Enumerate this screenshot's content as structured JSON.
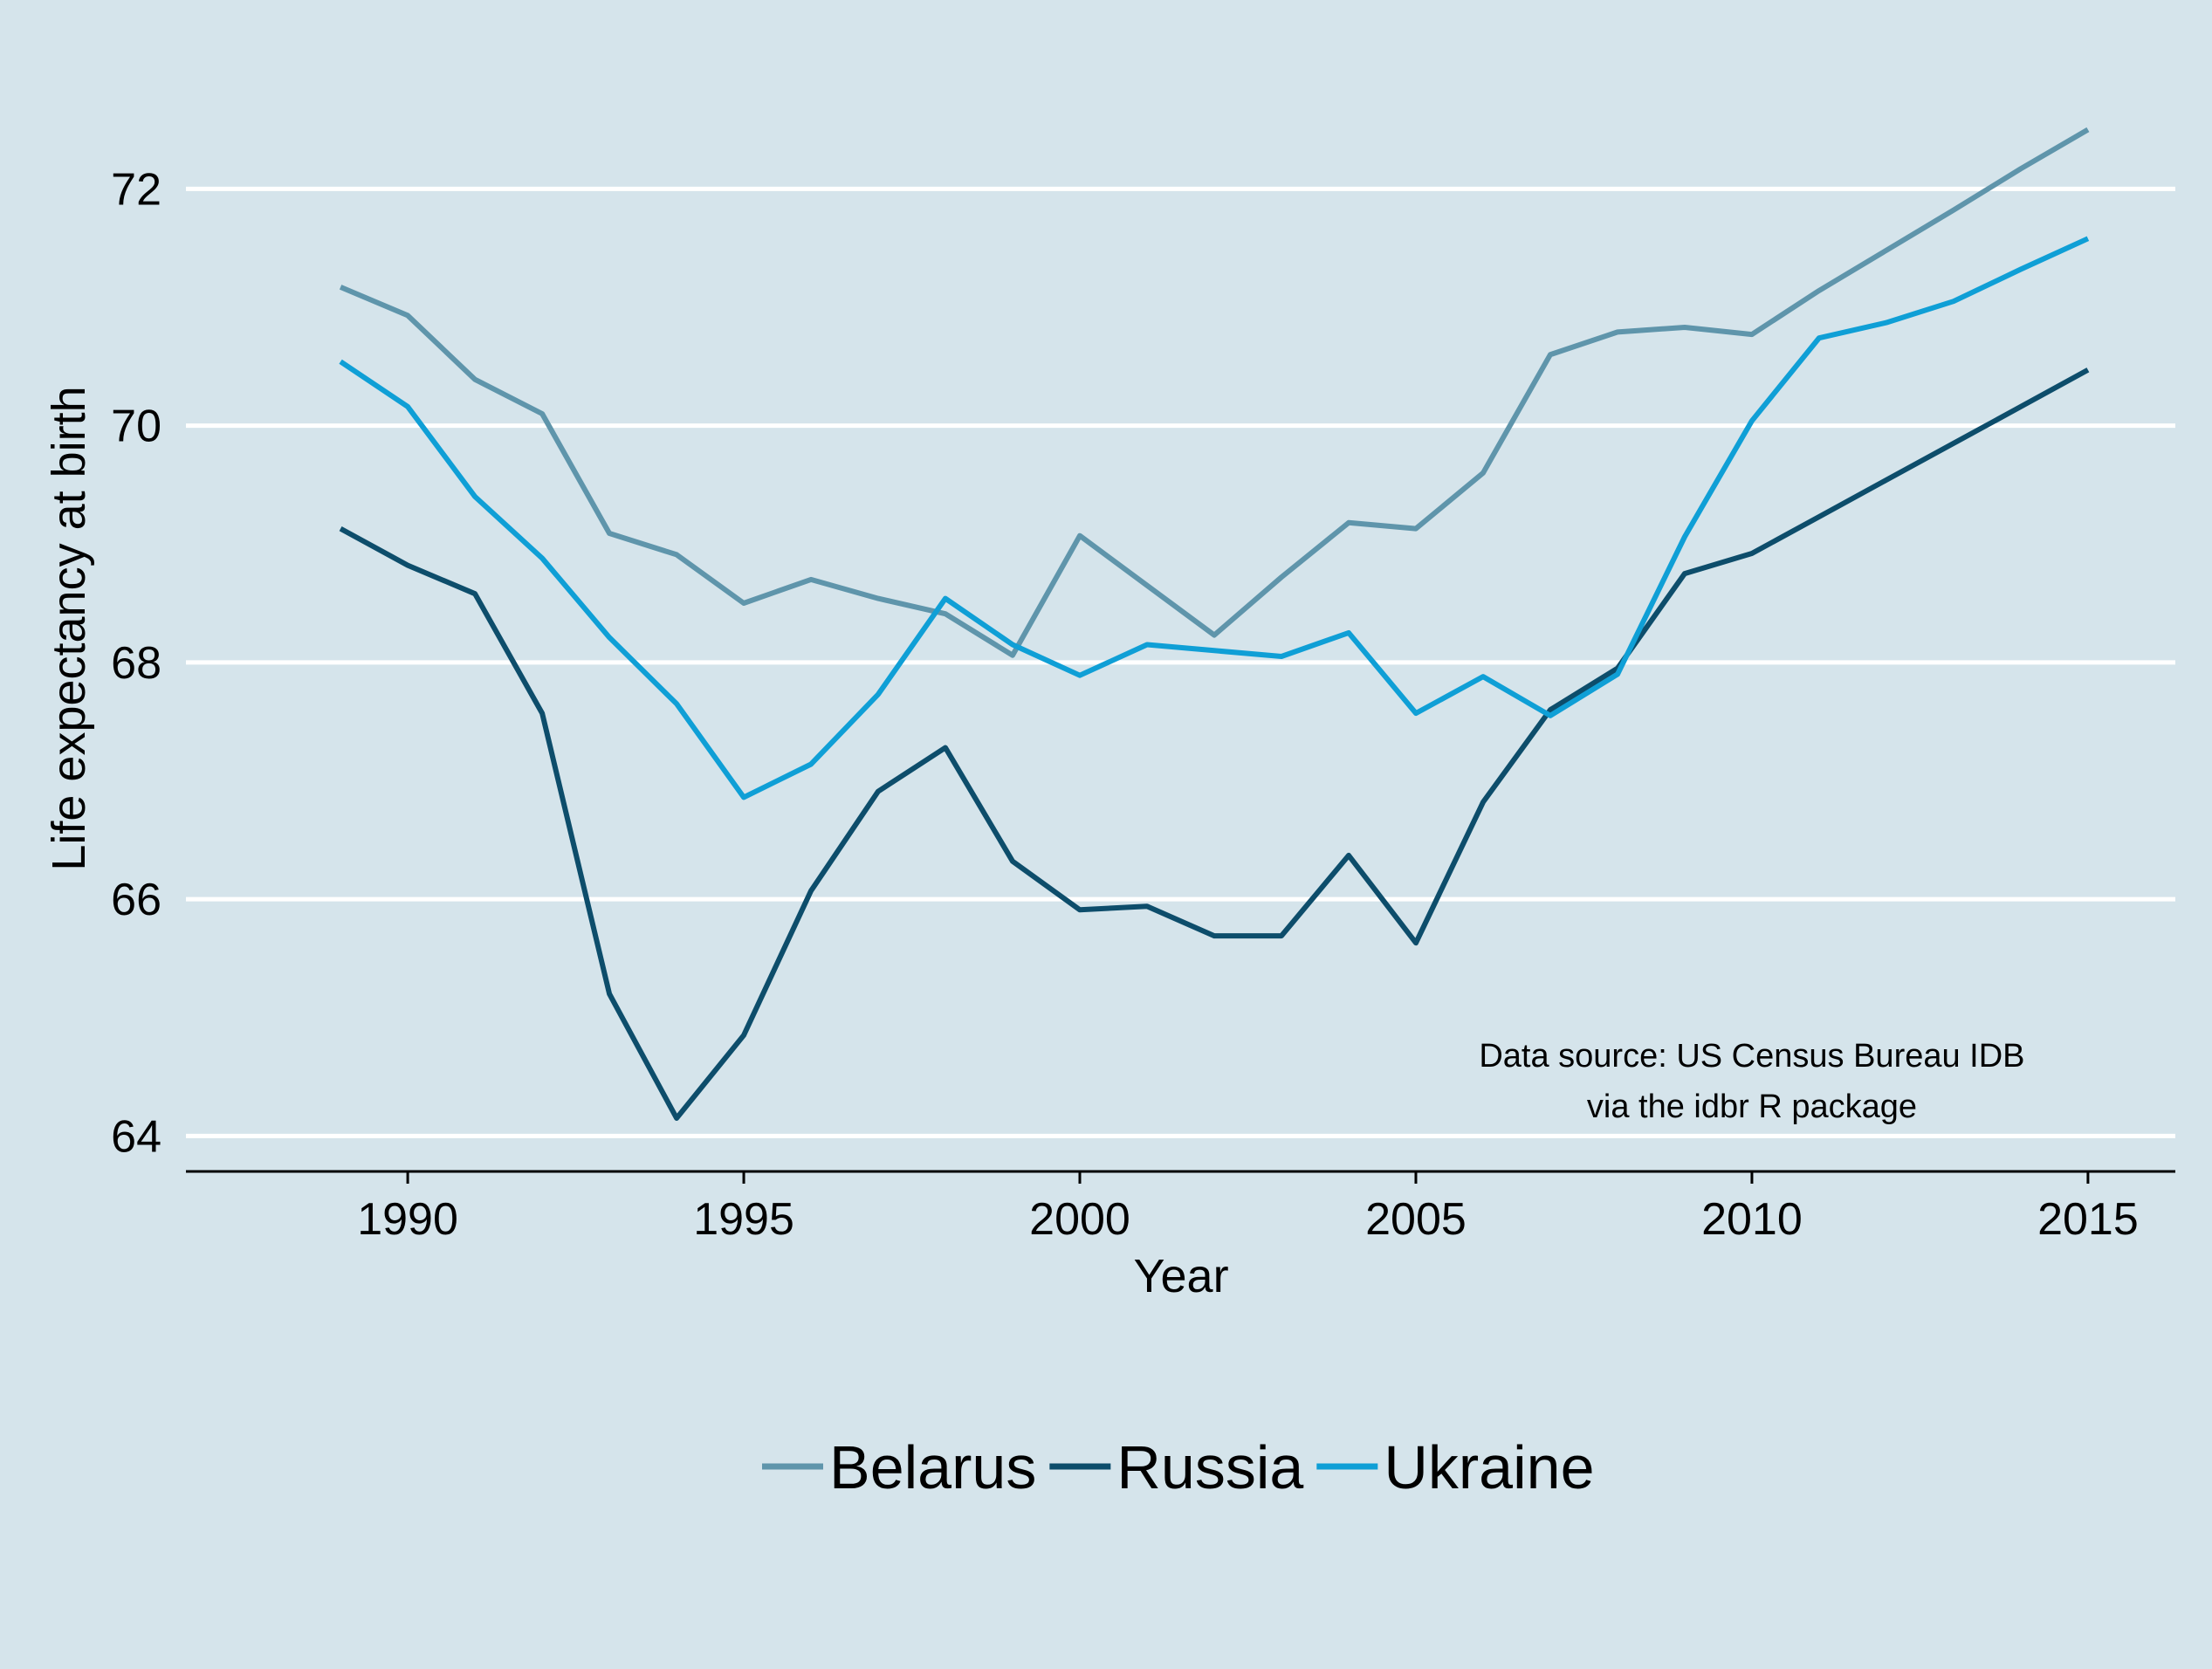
{
  "chart_data": {
    "type": "line",
    "title": "",
    "xlabel": "Year",
    "ylabel": "Life expectancy at birth",
    "xlim": [
      1986.7,
      2016.3
    ],
    "ylim": [
      63.7,
      73.3
    ],
    "x_ticks": [
      1990,
      1995,
      2000,
      2005,
      2010,
      2015
    ],
    "y_ticks": [
      64,
      66,
      68,
      70,
      72
    ],
    "x": [
      1989,
      1990,
      1991,
      1992,
      1993,
      1994,
      1995,
      1996,
      1997,
      1998,
      1999,
      2000,
      2001,
      2002,
      2003,
      2004,
      2005,
      2006,
      2007,
      2008,
      2009,
      2010,
      2011,
      2012,
      2013,
      2014,
      2015
    ],
    "grid": "horizontal",
    "legend_position": "bottom",
    "annotation": [
      "Data source: US Census Bureau IDB",
      "via the idbr R package"
    ],
    "series": [
      {
        "name": "Belarus",
        "color": "#5f95ab",
        "values": [
          71.17,
          70.93,
          70.39,
          70.1,
          69.09,
          68.91,
          68.5,
          68.7,
          68.54,
          68.41,
          68.06,
          69.07,
          68.65,
          68.23,
          68.72,
          69.18,
          69.13,
          69.6,
          70.6,
          70.79,
          70.83,
          70.77,
          71.14,
          71.48,
          71.82,
          72.17,
          72.5
        ]
      },
      {
        "name": "Russia",
        "color": "#0d4d6b",
        "values": [
          69.13,
          68.82,
          68.58,
          67.57,
          65.2,
          64.15,
          64.85,
          66.07,
          66.91,
          67.28,
          66.32,
          65.91,
          65.94,
          65.69,
          65.69,
          66.37,
          65.63,
          66.82,
          67.6,
          67.95,
          68.75,
          68.92,
          69.23,
          69.54,
          69.85,
          70.16,
          70.47
        ]
      },
      {
        "name": "Ukraine",
        "color": "#0f9fd6",
        "values": [
          70.54,
          70.16,
          69.4,
          68.88,
          68.21,
          67.65,
          66.86,
          67.14,
          67.73,
          68.54,
          68.15,
          67.89,
          68.15,
          68.1,
          68.05,
          68.25,
          67.57,
          67.88,
          67.55,
          67.9,
          69.06,
          70.04,
          70.74,
          70.87,
          71.05,
          71.32,
          71.58
        ]
      }
    ]
  }
}
